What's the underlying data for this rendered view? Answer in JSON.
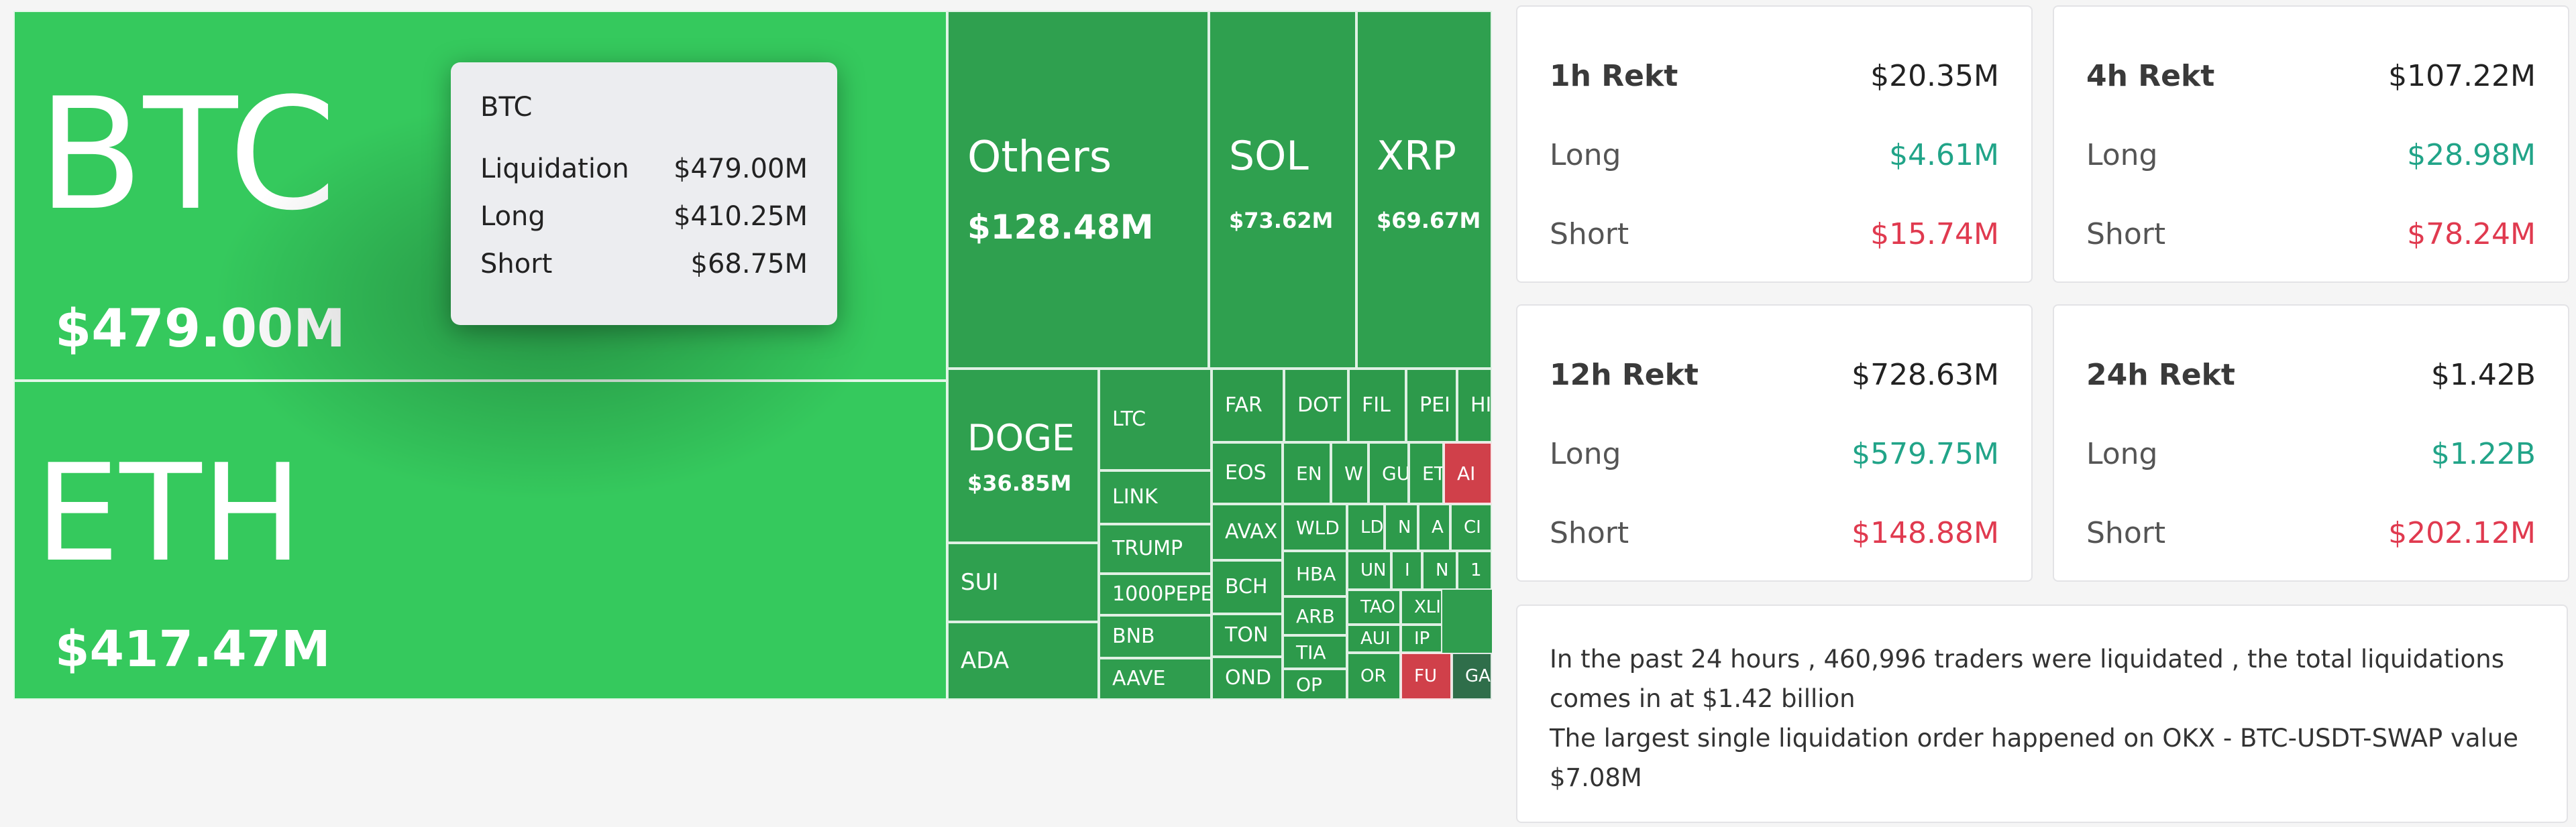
{
  "treemap": {
    "tiles": [
      {
        "symbol": "BTC",
        "value": "$479.00M",
        "color": "#35c95d"
      },
      {
        "symbol": "ETH",
        "value": "$417.47M",
        "color": "#35c95d"
      },
      {
        "symbol": "Others",
        "value": "$128.48M",
        "color": "#2fa04f"
      },
      {
        "symbol": "SOL",
        "value": "$73.62M",
        "color": "#2fa04f"
      },
      {
        "symbol": "XRP",
        "value": "$69.67M",
        "color": "#2fa04f"
      },
      {
        "symbol": "DOGE",
        "value": "$36.85M",
        "color": "#2fa04f"
      },
      {
        "symbol": "SUI",
        "value": "",
        "color": "#2fa04f"
      },
      {
        "symbol": "ADA",
        "value": "",
        "color": "#2fa04f"
      },
      {
        "symbol": "LTC",
        "value": "",
        "color": "#2f9d4e"
      },
      {
        "symbol": "LINK",
        "value": "",
        "color": "#2f9d4e"
      },
      {
        "symbol": "TRUMP",
        "value": "",
        "color": "#2f9d4e"
      },
      {
        "symbol": "1000PEPE",
        "value": "",
        "color": "#2f9d4e"
      },
      {
        "symbol": "BNB",
        "value": "",
        "color": "#2f9d4e"
      },
      {
        "symbol": "AAVE",
        "value": "",
        "color": "#2f9d4e"
      },
      {
        "symbol": "FAR",
        "value": "",
        "color": "#2d9a4b"
      },
      {
        "symbol": "DOT",
        "value": "",
        "color": "#2d9a4b"
      },
      {
        "symbol": "FIL",
        "value": "",
        "color": "#2d9a4b"
      },
      {
        "symbol": "PEI",
        "value": "",
        "color": "#2d9a4b"
      },
      {
        "symbol": "HI",
        "value": "",
        "color": "#2d9a4b"
      },
      {
        "symbol": "EOS",
        "value": "",
        "color": "#2d9a4b"
      },
      {
        "symbol": "EN",
        "value": "",
        "color": "#2d9a4b"
      },
      {
        "symbol": "W",
        "value": "",
        "color": "#2d9a4b"
      },
      {
        "symbol": "GU",
        "value": "",
        "color": "#2d9a4b"
      },
      {
        "symbol": "ET",
        "value": "",
        "color": "#2d9a4b"
      },
      {
        "symbol": "AI",
        "value": "",
        "color": "#d0404a"
      },
      {
        "symbol": "AVAX",
        "value": "",
        "color": "#2d9a4b"
      },
      {
        "symbol": "WLD",
        "value": "",
        "color": "#2d9a4b"
      },
      {
        "symbol": "LD",
        "value": "",
        "color": "#2d9a4b"
      },
      {
        "symbol": "N",
        "value": "",
        "color": "#2d9a4b"
      },
      {
        "symbol": "A",
        "value": "",
        "color": "#2d9a4b"
      },
      {
        "symbol": "CI",
        "value": "",
        "color": "#2d9a4b"
      },
      {
        "symbol": "BCH",
        "value": "",
        "color": "#2d9a4b"
      },
      {
        "symbol": "HBA",
        "value": "",
        "color": "#2d9a4b"
      },
      {
        "symbol": "UN",
        "value": "",
        "color": "#2d9a4b"
      },
      {
        "symbol": "I",
        "value": "",
        "color": "#2d9a4b"
      },
      {
        "symbol": "N",
        "value": "",
        "color": "#2d9a4b"
      },
      {
        "symbol": "1",
        "value": "",
        "color": "#2d9a4b"
      },
      {
        "symbol": "ARB",
        "value": "",
        "color": "#2d9a4b"
      },
      {
        "symbol": "TON",
        "value": "",
        "color": "#2d9a4b"
      },
      {
        "symbol": "TAO",
        "value": "",
        "color": "#2d9a4b"
      },
      {
        "symbol": "XLI",
        "value": "",
        "color": "#2d9a4b"
      },
      {
        "symbol": "TIA",
        "value": "",
        "color": "#2d9a4b"
      },
      {
        "symbol": "AUI",
        "value": "",
        "color": "#2d9a4b"
      },
      {
        "symbol": "IP",
        "value": "",
        "color": "#2d9a4b"
      },
      {
        "symbol": "OND",
        "value": "",
        "color": "#2d9a4b"
      },
      {
        "symbol": "OP",
        "value": "",
        "color": "#2d9a4b"
      },
      {
        "symbol": "OR",
        "value": "",
        "color": "#2d9a4b"
      },
      {
        "symbol": "FU",
        "value": "",
        "color": "#d0404a"
      },
      {
        "symbol": "GA",
        "value": "",
        "color": "#2f6e4a"
      }
    ]
  },
  "tooltip": {
    "title": "BTC",
    "rows": [
      {
        "label": "Liquidation",
        "value": "$479.00M"
      },
      {
        "label": "Long",
        "value": "$410.25M"
      },
      {
        "label": "Short",
        "value": "$68.75M"
      }
    ]
  },
  "cards": [
    {
      "title": "1h Rekt",
      "total": "$20.35M",
      "long_label": "Long",
      "long": "$4.61M",
      "short_label": "Short",
      "short": "$15.74M"
    },
    {
      "title": "4h Rekt",
      "total": "$107.22M",
      "long_label": "Long",
      "long": "$28.98M",
      "short_label": "Short",
      "short": "$78.24M"
    },
    {
      "title": "12h Rekt",
      "total": "$728.63M",
      "long_label": "Long",
      "long": "$579.75M",
      "short_label": "Short",
      "short": "$148.88M"
    },
    {
      "title": "24h Rekt",
      "total": "$1.42B",
      "long_label": "Long",
      "long": "$1.22B",
      "short_label": "Short",
      "short": "$202.12M"
    }
  ],
  "summary": {
    "line1": "In the past 24 hours , 460,996 traders were liquidated , the total liquidations comes in at $1.42 billion",
    "line2": "The largest single liquidation order happened on OKX - BTC-USDT-SWAP value $7.08M"
  }
}
